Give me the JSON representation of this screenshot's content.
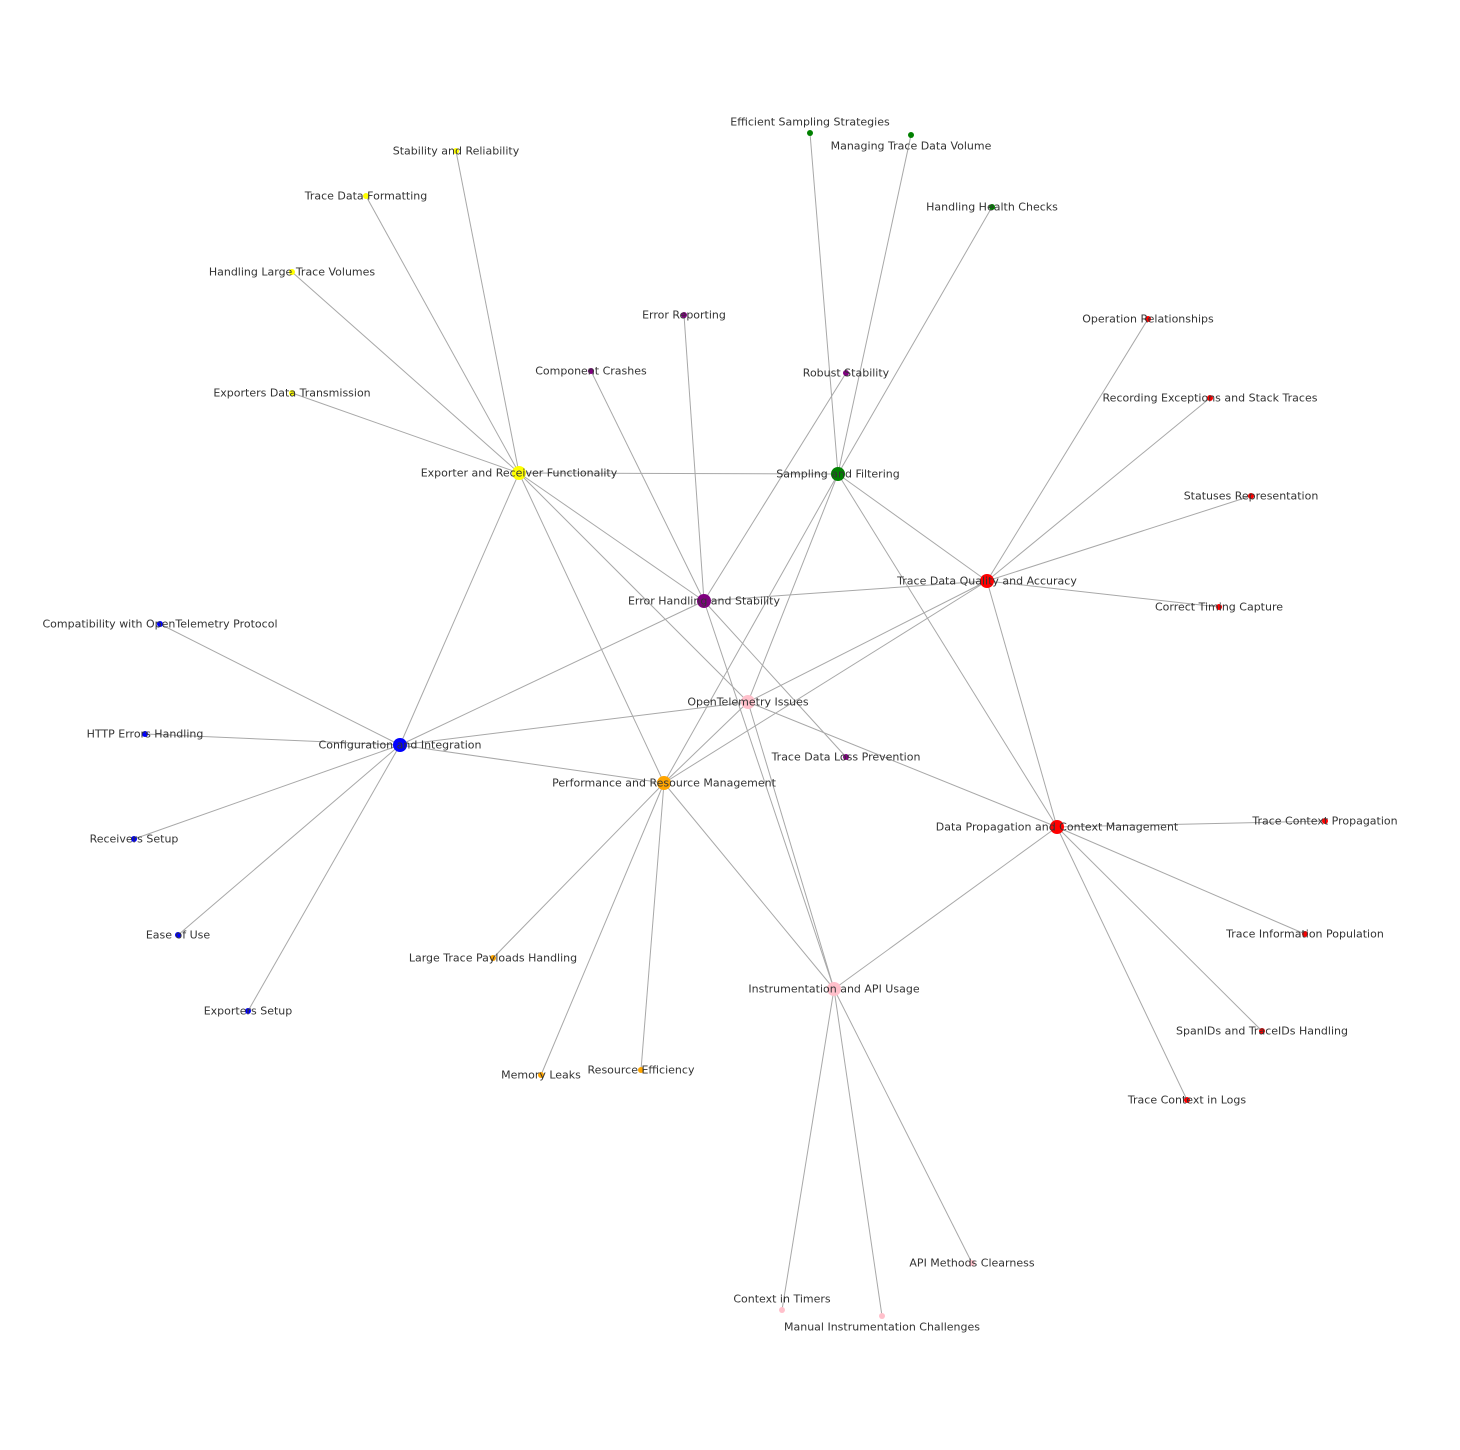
{
  "colors": {
    "yellow": "#ffff00",
    "green": "#008000",
    "purple": "#800080",
    "red": "#ff0000",
    "blue": "#0000ff",
    "orange": "#ffa500",
    "pink": "#ffc0cb",
    "edge": "#a8a8a8"
  },
  "nodes": [
    {
      "id": "root",
      "label": "OpenTelemetry Issues",
      "color": "#ffc0cb",
      "kind": "root"
    },
    {
      "id": "exp",
      "label": "Exporter and Receiver Functionality",
      "color": "#ffff00",
      "kind": "category"
    },
    {
      "id": "samp",
      "label": "Sampling and Filtering",
      "color": "#008000",
      "kind": "category"
    },
    {
      "id": "err",
      "label": "Error Handling and Stability",
      "color": "#800080",
      "kind": "category"
    },
    {
      "id": "tdq",
      "label": "Trace Data Quality and Accuracy",
      "color": "#ff0000",
      "kind": "category"
    },
    {
      "id": "cfg",
      "label": "Configuration and Integration",
      "color": "#0000ff",
      "kind": "category"
    },
    {
      "id": "perf",
      "label": "Performance and Resource Management",
      "color": "#ffa500",
      "kind": "category"
    },
    {
      "id": "dp",
      "label": "Data Propagation and Context Management",
      "color": "#ff0000",
      "kind": "category"
    },
    {
      "id": "inst",
      "label": "Instrumentation and API Usage",
      "color": "#ffc0cb",
      "kind": "category"
    },
    {
      "id": "l1",
      "label": "Stability and Reliability",
      "color": "#ffff00",
      "kind": "leaf"
    },
    {
      "id": "l2",
      "label": "Trace Data Formatting",
      "color": "#ffff00",
      "kind": "leaf"
    },
    {
      "id": "l3",
      "label": "Handling Large Trace Volumes",
      "color": "#ffff00",
      "kind": "leaf"
    },
    {
      "id": "l4",
      "label": "Exporters Data Transmission",
      "color": "#ffff00",
      "kind": "leaf"
    },
    {
      "id": "l5",
      "label": "Efficient Sampling Strategies",
      "color": "#008000",
      "kind": "leaf"
    },
    {
      "id": "l6",
      "label": "Managing Trace Data Volume",
      "color": "#008000",
      "kind": "leaf"
    },
    {
      "id": "l7",
      "label": "Handling Health Checks",
      "color": "#008000",
      "kind": "leaf"
    },
    {
      "id": "l8",
      "label": "Error Reporting",
      "color": "#800080",
      "kind": "leaf"
    },
    {
      "id": "l9",
      "label": "Component Crashes",
      "color": "#800080",
      "kind": "leaf"
    },
    {
      "id": "l10",
      "label": "Robust Stability",
      "color": "#800080",
      "kind": "leaf"
    },
    {
      "id": "l11",
      "label": "Trace Data Loss Prevention",
      "color": "#800080",
      "kind": "leaf"
    },
    {
      "id": "l12",
      "label": "Operation Relationships",
      "color": "#ff0000",
      "kind": "leaf"
    },
    {
      "id": "l13",
      "label": "Recording Exceptions and Stack Traces",
      "color": "#ff0000",
      "kind": "leaf"
    },
    {
      "id": "l14",
      "label": "Statuses Representation",
      "color": "#ff0000",
      "kind": "leaf"
    },
    {
      "id": "l15",
      "label": "Correct Timing Capture",
      "color": "#ff0000",
      "kind": "leaf"
    },
    {
      "id": "l16",
      "label": "Compatibility with OpenTelemetry Protocol",
      "color": "#0000ff",
      "kind": "leaf"
    },
    {
      "id": "l17",
      "label": "HTTP Errors Handling",
      "color": "#0000ff",
      "kind": "leaf"
    },
    {
      "id": "l18",
      "label": "Receivers Setup",
      "color": "#0000ff",
      "kind": "leaf"
    },
    {
      "id": "l19",
      "label": "Ease of Use",
      "color": "#0000ff",
      "kind": "leaf"
    },
    {
      "id": "l20",
      "label": "Exporters Setup",
      "color": "#0000ff",
      "kind": "leaf"
    },
    {
      "id": "l21",
      "label": "Large Trace Payloads Handling",
      "color": "#ffa500",
      "kind": "leaf"
    },
    {
      "id": "l22",
      "label": "Memory Leaks",
      "color": "#ffa500",
      "kind": "leaf"
    },
    {
      "id": "l23",
      "label": "Resource Efficiency",
      "color": "#ffa500",
      "kind": "leaf"
    },
    {
      "id": "l24",
      "label": "Trace Context Propagation",
      "color": "#ff0000",
      "kind": "leaf"
    },
    {
      "id": "l25",
      "label": "Trace Information Population",
      "color": "#ff0000",
      "kind": "leaf"
    },
    {
      "id": "l26",
      "label": "SpanIDs and TraceIDs Handling",
      "color": "#ff0000",
      "kind": "leaf"
    },
    {
      "id": "l27",
      "label": "Trace Context in Logs",
      "color": "#ff0000",
      "kind": "leaf"
    },
    {
      "id": "l28",
      "label": "API Methods Clearness",
      "color": "#ffc0cb",
      "kind": "leaf"
    },
    {
      "id": "l29",
      "label": "Context in Timers",
      "color": "#ffc0cb",
      "kind": "leaf"
    },
    {
      "id": "l30",
      "label": "Manual Instrumentation Challenges",
      "color": "#ffc0cb",
      "kind": "leaf"
    }
  ],
  "edges": [
    [
      "root",
      "exp"
    ],
    [
      "root",
      "samp"
    ],
    [
      "root",
      "tdq"
    ],
    [
      "root",
      "cfg"
    ],
    [
      "root",
      "perf"
    ],
    [
      "root",
      "dp"
    ],
    [
      "root",
      "inst"
    ],
    [
      "exp",
      "samp"
    ],
    [
      "exp",
      "cfg"
    ],
    [
      "exp",
      "perf"
    ],
    [
      "exp",
      "err"
    ],
    [
      "samp",
      "perf"
    ],
    [
      "samp",
      "tdq"
    ],
    [
      "samp",
      "dp"
    ],
    [
      "err",
      "tdq"
    ],
    [
      "err",
      "cfg"
    ],
    [
      "err",
      "inst"
    ],
    [
      "tdq",
      "perf"
    ],
    [
      "tdq",
      "dp"
    ],
    [
      "cfg",
      "perf"
    ],
    [
      "perf",
      "inst"
    ],
    [
      "dp",
      "inst"
    ],
    [
      "exp",
      "l1"
    ],
    [
      "exp",
      "l2"
    ],
    [
      "exp",
      "l3"
    ],
    [
      "exp",
      "l4"
    ],
    [
      "samp",
      "l5"
    ],
    [
      "samp",
      "l6"
    ],
    [
      "samp",
      "l7"
    ],
    [
      "err",
      "l8"
    ],
    [
      "err",
      "l9"
    ],
    [
      "err",
      "l10"
    ],
    [
      "err",
      "l11"
    ],
    [
      "tdq",
      "l12"
    ],
    [
      "tdq",
      "l13"
    ],
    [
      "tdq",
      "l14"
    ],
    [
      "tdq",
      "l15"
    ],
    [
      "cfg",
      "l16"
    ],
    [
      "cfg",
      "l17"
    ],
    [
      "cfg",
      "l18"
    ],
    [
      "cfg",
      "l19"
    ],
    [
      "cfg",
      "l20"
    ],
    [
      "perf",
      "l21"
    ],
    [
      "perf",
      "l22"
    ],
    [
      "perf",
      "l23"
    ],
    [
      "dp",
      "l24"
    ],
    [
      "dp",
      "l25"
    ],
    [
      "dp",
      "l26"
    ],
    [
      "dp",
      "l27"
    ],
    [
      "inst",
      "l28"
    ],
    [
      "inst",
      "l29"
    ],
    [
      "inst",
      "l30"
    ]
  ]
}
